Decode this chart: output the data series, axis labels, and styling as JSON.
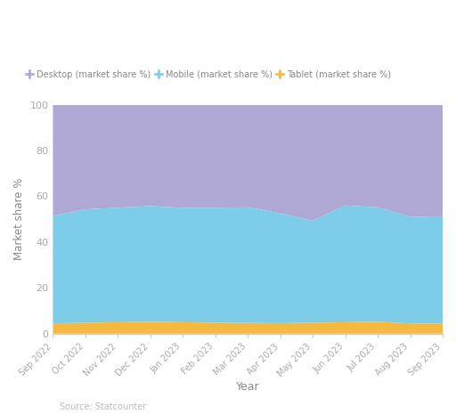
{
  "months": [
    "Sep 2022",
    "Oct 2022",
    "Nov 2022",
    "Dec 2022",
    "Jan 2023",
    "Feb 2023",
    "Mar 2023",
    "Apr 2023",
    "May 2023",
    "Jun 2023",
    "Jul 2023",
    "Aug 2023",
    "Sep 2023"
  ],
  "tablet": [
    4.5,
    4.8,
    5.0,
    5.2,
    5.0,
    4.8,
    4.7,
    4.6,
    4.8,
    5.0,
    5.2,
    4.5,
    4.3
  ],
  "mobile": [
    47.0,
    49.5,
    50.0,
    50.5,
    50.0,
    50.2,
    50.5,
    48.0,
    44.5,
    51.0,
    50.0,
    46.5,
    47.0
  ],
  "desktop": [
    48.5,
    45.7,
    45.0,
    44.3,
    45.0,
    45.0,
    44.8,
    47.4,
    50.7,
    44.0,
    44.8,
    49.0,
    48.7
  ],
  "colors": {
    "desktop": "#b0a8d4",
    "mobile": "#7ecde8",
    "tablet": "#f5b942"
  },
  "ylabel": "Market share %",
  "xlabel": "Year",
  "source": "Source: Statcounter",
  "ylim": [
    0,
    100
  ],
  "yticks": [
    0,
    20,
    40,
    60,
    80,
    100
  ],
  "legend_labels": [
    "Desktop (market share %)",
    "Mobile (market share %)",
    "Tablet (market share %)"
  ],
  "background_color": "#ffffff",
  "tick_color": "#aaaaaa",
  "label_color": "#888888",
  "grid_color": "#e8e8e8"
}
